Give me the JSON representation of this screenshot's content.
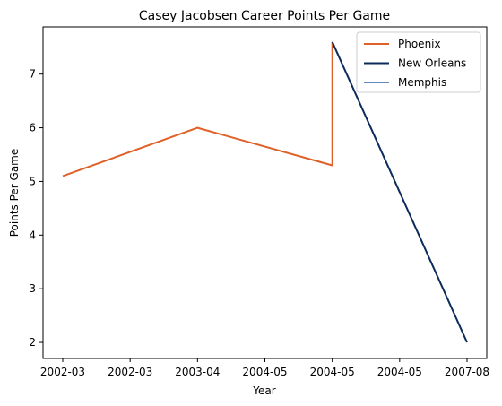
{
  "chart_data": {
    "type": "line",
    "title": "Casey Jacobsen Career Points Per Game",
    "xlabel": "Year",
    "ylabel": "Points Per Game",
    "x_categories": [
      "2002-03",
      "2002-03",
      "2003-04",
      "2004-05",
      "2004-05",
      "2004-05",
      "2007-08"
    ],
    "ylim": [
      1.7,
      7.88
    ],
    "yticks": [
      2,
      3,
      4,
      5,
      6,
      7
    ],
    "series": [
      {
        "name": "Phoenix",
        "color": "#e06128",
        "points": [
          [
            0,
            5.1
          ],
          [
            2,
            6.0
          ],
          [
            4,
            5.3
          ],
          [
            4,
            7.6
          ]
        ]
      },
      {
        "name": "New Orleans",
        "color": "#0b2b5a",
        "points": [
          [
            4,
            7.6
          ],
          [
            6,
            2.0
          ]
        ]
      },
      {
        "name": "Memphis",
        "color": "#6689bd",
        "points": []
      }
    ],
    "legend": "top-right"
  }
}
